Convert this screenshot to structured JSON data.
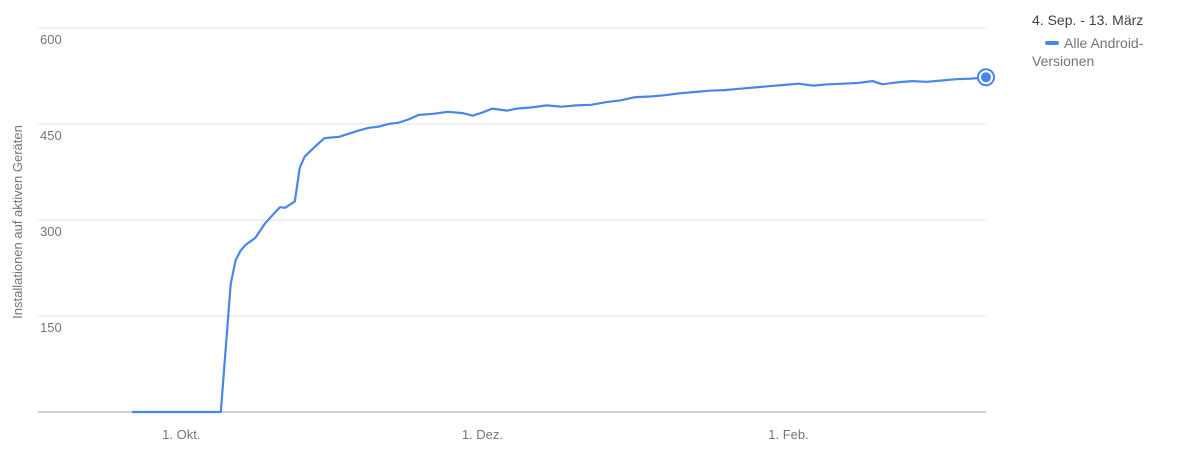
{
  "legend": {
    "range_label": "4. Sep. - 13. März",
    "series_label": "Alle Android-Versionen"
  },
  "chart_data": {
    "type": "line",
    "title": "",
    "xlabel": "",
    "ylabel": "Installationen auf aktiven Geräten",
    "x_range": [
      "2016-09-04",
      "2017-03-13"
    ],
    "x_ticks": [
      {
        "date": "2016-10-01",
        "label": "1. Okt."
      },
      {
        "date": "2016-12-01",
        "label": "1. Dez."
      },
      {
        "date": "2017-02-01",
        "label": "1. Feb."
      }
    ],
    "ylim": [
      0,
      600
    ],
    "y_ticks": [
      150,
      300,
      450,
      600
    ],
    "grid": true,
    "legend_position": "top-right",
    "series": [
      {
        "name": "Alle Android-Versionen",
        "color": "#4a86e8",
        "end_marker": true,
        "points": [
          [
            "2016-09-21",
            0
          ],
          [
            "2016-10-09",
            0
          ],
          [
            "2016-10-11",
            200
          ],
          [
            "2016-10-12",
            237
          ],
          [
            "2016-10-13",
            252
          ],
          [
            "2016-10-14",
            261
          ],
          [
            "2016-10-16",
            272
          ],
          [
            "2016-10-18",
            295
          ],
          [
            "2016-10-20",
            312
          ],
          [
            "2016-10-21",
            320
          ],
          [
            "2016-10-22",
            319
          ],
          [
            "2016-10-24",
            329
          ],
          [
            "2016-10-25",
            382
          ],
          [
            "2016-10-26",
            399
          ],
          [
            "2016-10-28",
            414
          ],
          [
            "2016-10-30",
            428
          ],
          [
            "2016-11-02",
            430
          ],
          [
            "2016-11-04",
            435
          ],
          [
            "2016-11-06",
            440
          ],
          [
            "2016-11-08",
            444
          ],
          [
            "2016-11-10",
            446
          ],
          [
            "2016-11-12",
            450
          ],
          [
            "2016-11-14",
            452
          ],
          [
            "2016-11-16",
            457
          ],
          [
            "2016-11-18",
            464
          ],
          [
            "2016-11-21",
            466
          ],
          [
            "2016-11-24",
            469
          ],
          [
            "2016-11-27",
            467
          ],
          [
            "2016-11-29",
            463
          ],
          [
            "2016-12-01",
            468
          ],
          [
            "2016-12-03",
            474
          ],
          [
            "2016-12-06",
            471
          ],
          [
            "2016-12-08",
            474
          ],
          [
            "2016-12-11",
            476
          ],
          [
            "2016-12-14",
            479
          ],
          [
            "2016-12-17",
            477
          ],
          [
            "2016-12-20",
            479
          ],
          [
            "2016-12-23",
            480
          ],
          [
            "2016-12-26",
            484
          ],
          [
            "2016-12-29",
            487
          ],
          [
            "2017-01-01",
            492
          ],
          [
            "2017-01-04",
            493
          ],
          [
            "2017-01-07",
            495
          ],
          [
            "2017-01-10",
            498
          ],
          [
            "2017-01-13",
            500
          ],
          [
            "2017-01-16",
            502
          ],
          [
            "2017-01-19",
            503
          ],
          [
            "2017-01-22",
            505
          ],
          [
            "2017-01-25",
            507
          ],
          [
            "2017-01-28",
            509
          ],
          [
            "2017-01-31",
            511
          ],
          [
            "2017-02-03",
            513
          ],
          [
            "2017-02-06",
            510
          ],
          [
            "2017-02-09",
            512
          ],
          [
            "2017-02-12",
            513
          ],
          [
            "2017-02-15",
            514
          ],
          [
            "2017-02-18",
            517
          ],
          [
            "2017-02-20",
            512
          ],
          [
            "2017-02-23",
            515
          ],
          [
            "2017-02-26",
            517
          ],
          [
            "2017-03-01",
            516
          ],
          [
            "2017-03-04",
            518
          ],
          [
            "2017-03-07",
            520
          ],
          [
            "2017-03-10",
            521
          ],
          [
            "2017-03-13",
            523
          ]
        ]
      }
    ]
  }
}
